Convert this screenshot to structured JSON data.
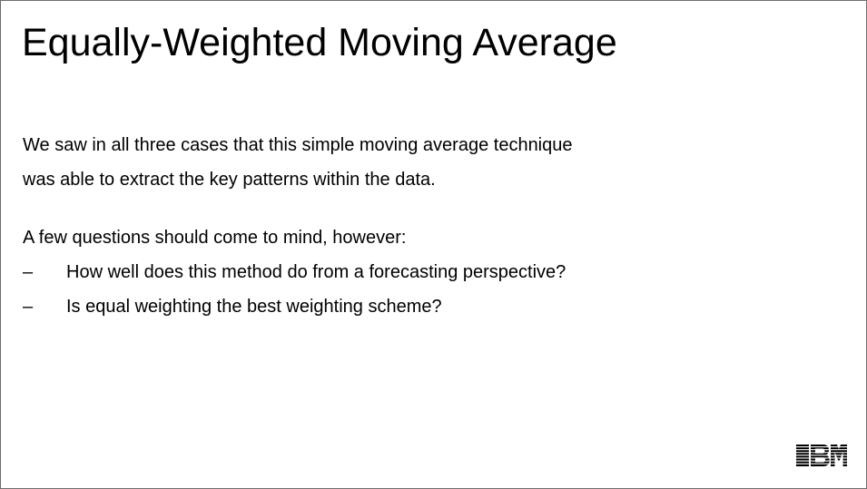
{
  "slide": {
    "title": "Equally-Weighted Moving Average",
    "paragraph1": [
      "We saw in all three cases that this simple moving average technique",
      "was able to extract the key patterns within the data."
    ],
    "paragraph2": "A few questions should come to mind, however:",
    "bullet_marker": "–",
    "bullets": [
      "How well does this method do from a forecasting perspective?",
      "Is equal weighting the best weighting scheme?"
    ],
    "logo": {
      "text": "IBM",
      "icon": "ibm-logo",
      "color": "#000000"
    }
  }
}
